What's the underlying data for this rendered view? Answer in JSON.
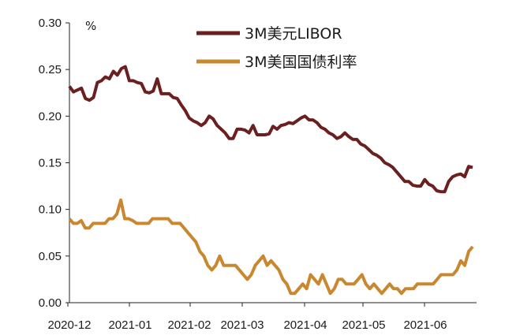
{
  "chart_data": {
    "type": "line",
    "title": "",
    "xlabel": "",
    "ylabel": "",
    "unit_label": "%",
    "ylim": [
      0.0,
      0.3
    ],
    "yticks": [
      "0.00",
      "0.05",
      "0.10",
      "0.15",
      "0.20",
      "0.25",
      "0.30"
    ],
    "xticks": [
      "2020-12",
      "2021-01",
      "2021-02",
      "2021-03",
      "2021-04",
      "2021-05",
      "2021-06"
    ],
    "grid": false,
    "legend_position": "top-right",
    "series": [
      {
        "name": "3M美元LIBOR",
        "color": "#6b1f1f",
        "values": [
          0.232,
          0.226,
          0.228,
          0.23,
          0.219,
          0.217,
          0.22,
          0.236,
          0.238,
          0.242,
          0.24,
          0.248,
          0.244,
          0.251,
          0.253,
          0.238,
          0.238,
          0.236,
          0.235,
          0.226,
          0.225,
          0.227,
          0.24,
          0.224,
          0.224,
          0.224,
          0.22,
          0.219,
          0.212,
          0.206,
          0.198,
          0.195,
          0.193,
          0.19,
          0.193,
          0.2,
          0.197,
          0.19,
          0.186,
          0.182,
          0.176,
          0.176,
          0.186,
          0.186,
          0.185,
          0.182,
          0.19,
          0.18,
          0.18,
          0.18,
          0.181,
          0.189,
          0.186,
          0.19,
          0.191,
          0.193,
          0.192,
          0.195,
          0.198,
          0.2,
          0.196,
          0.196,
          0.193,
          0.188,
          0.186,
          0.182,
          0.18,
          0.176,
          0.178,
          0.182,
          0.178,
          0.175,
          0.175,
          0.17,
          0.168,
          0.164,
          0.16,
          0.158,
          0.155,
          0.15,
          0.148,
          0.145,
          0.14,
          0.135,
          0.13,
          0.13,
          0.126,
          0.125,
          0.125,
          0.132,
          0.127,
          0.125,
          0.12,
          0.119,
          0.119,
          0.13,
          0.135,
          0.137,
          0.138,
          0.135,
          0.146,
          0.145
        ]
      },
      {
        "name": "3M美国国债利率",
        "color": "#c9882f",
        "values": [
          0.09,
          0.085,
          0.085,
          0.088,
          0.08,
          0.08,
          0.085,
          0.085,
          0.085,
          0.085,
          0.09,
          0.09,
          0.095,
          0.11,
          0.09,
          0.09,
          0.088,
          0.085,
          0.085,
          0.085,
          0.085,
          0.09,
          0.09,
          0.09,
          0.09,
          0.09,
          0.085,
          0.085,
          0.085,
          0.08,
          0.075,
          0.07,
          0.065,
          0.055,
          0.05,
          0.04,
          0.035,
          0.04,
          0.05,
          0.04,
          0.04,
          0.04,
          0.04,
          0.035,
          0.03,
          0.025,
          0.03,
          0.04,
          0.045,
          0.05,
          0.04,
          0.045,
          0.04,
          0.035,
          0.025,
          0.02,
          0.01,
          0.01,
          0.015,
          0.02,
          0.015,
          0.03,
          0.025,
          0.02,
          0.03,
          0.02,
          0.01,
          0.015,
          0.025,
          0.025,
          0.02,
          0.02,
          0.02,
          0.025,
          0.03,
          0.02,
          0.015,
          0.02,
          0.015,
          0.01,
          0.015,
          0.02,
          0.015,
          0.015,
          0.01,
          0.015,
          0.015,
          0.015,
          0.02,
          0.02,
          0.02,
          0.02,
          0.02,
          0.025,
          0.03,
          0.03,
          0.03,
          0.03,
          0.035,
          0.045,
          0.04,
          0.055,
          0.06
        ]
      }
    ]
  }
}
